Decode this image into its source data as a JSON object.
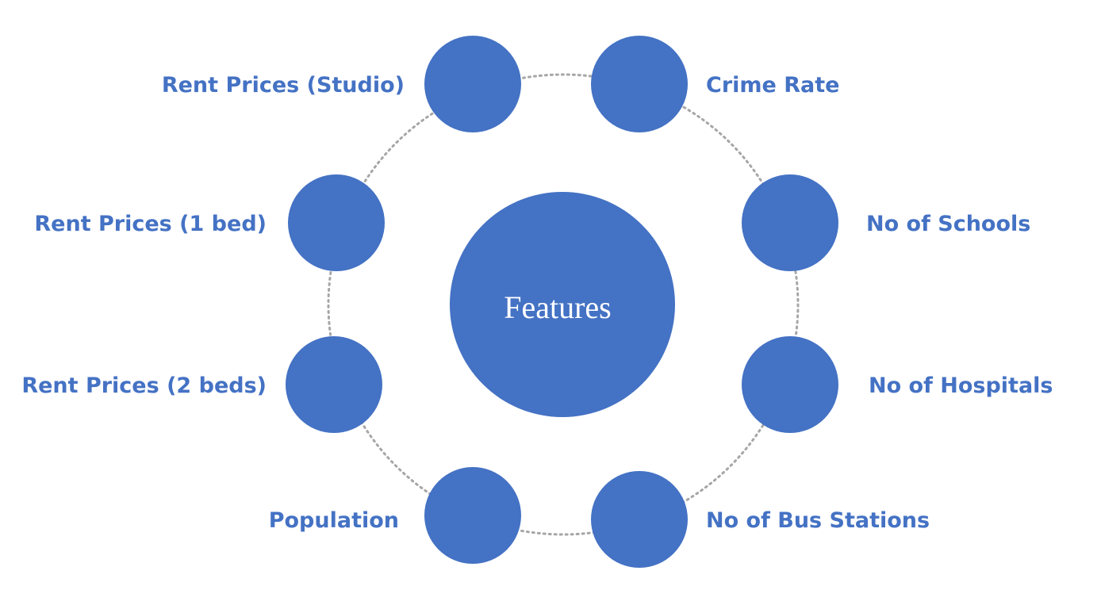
{
  "diagram": {
    "center": "Features",
    "features": [
      "Rent Prices (Studio)",
      "Crime Rate",
      "Rent Prices (1 bed)",
      "No of Schools",
      "Rent Prices (2 beds)",
      "No of Hospitals",
      "Population",
      "No of Bus Stations"
    ]
  },
  "colors": {
    "node_fill": "#4472c4",
    "label_text": "#4472c4",
    "center_text": "#ffffff",
    "ring": "#a6a6a6"
  }
}
